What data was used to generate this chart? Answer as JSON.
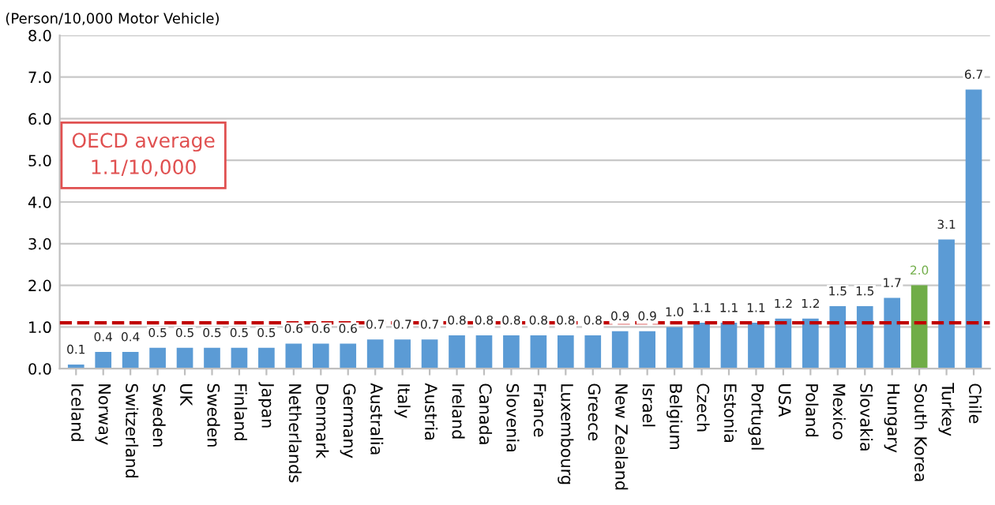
{
  "chart_data": {
    "type": "bar",
    "ylabel": "(Person/10,000 Motor Vehicle)",
    "categories": [
      "Iceland",
      "Norway",
      "Switzerland",
      "Sweden",
      "UK",
      "Sweden",
      "Finland",
      "Japan",
      "Netherlands",
      "Denmark",
      "Germany",
      "Australia",
      "Italy",
      "Austria",
      "Ireland",
      "Canada",
      "Slovenia",
      "France",
      "Luxembourg",
      "Greece",
      "New Zealand",
      "Israel",
      "Belgium",
      "Czech",
      "Estonia",
      "Portugal",
      "USA",
      "Poland",
      "Mexico",
      "Slovakia",
      "Hungary",
      "South Korea",
      "Turkey",
      "Chile"
    ],
    "values": [
      0.1,
      0.4,
      0.4,
      0.5,
      0.5,
      0.5,
      0.5,
      0.5,
      0.6,
      0.6,
      0.6,
      0.7,
      0.7,
      0.7,
      0.8,
      0.8,
      0.8,
      0.8,
      0.8,
      0.8,
      0.9,
      0.9,
      1.0,
      1.1,
      1.1,
      1.1,
      1.2,
      1.2,
      1.5,
      1.5,
      1.7,
      2.0,
      3.1,
      6.7
    ],
    "colors": [
      "#5b9bd5",
      "#5b9bd5",
      "#5b9bd5",
      "#5b9bd5",
      "#5b9bd5",
      "#5b9bd5",
      "#5b9bd5",
      "#5b9bd5",
      "#5b9bd5",
      "#5b9bd5",
      "#5b9bd5",
      "#5b9bd5",
      "#5b9bd5",
      "#5b9bd5",
      "#5b9bd5",
      "#5b9bd5",
      "#5b9bd5",
      "#5b9bd5",
      "#5b9bd5",
      "#5b9bd5",
      "#5b9bd5",
      "#5b9bd5",
      "#5b9bd5",
      "#5b9bd5",
      "#5b9bd5",
      "#5b9bd5",
      "#5b9bd5",
      "#5b9bd5",
      "#5b9bd5",
      "#5b9bd5",
      "#5b9bd5",
      "#70ad47",
      "#5b9bd5",
      "#5b9bd5"
    ],
    "ylim": [
      0,
      8
    ],
    "yticks": [
      {
        "value": 0,
        "label": "0.0"
      },
      {
        "value": 1,
        "label": "1.0"
      },
      {
        "value": 2,
        "label": "2.0"
      },
      {
        "value": 3,
        "label": "3.0"
      },
      {
        "value": 4,
        "label": "4.0"
      },
      {
        "value": 5,
        "label": "5.0"
      },
      {
        "value": 6,
        "label": "6.0"
      },
      {
        "value": 7,
        "label": "7.0"
      },
      {
        "value": 8,
        "label": "8.0"
      }
    ],
    "value_labels": [
      "0.1",
      "0.4",
      "0.4",
      "0.5",
      "0.5",
      "0.5",
      "0.5",
      "0.5",
      "0.6",
      "0.6",
      "0.6",
      "0.7",
      "0.7",
      "0.7",
      "0.8",
      "0.8",
      "0.8",
      "0.8",
      "0.8",
      "0.8",
      "0.9",
      "0.9",
      "1.0",
      "1.1",
      "1.1",
      "1.1",
      "1.2",
      "1.2",
      "1.5",
      "1.5",
      "1.7",
      "2.0",
      "3.1",
      "6.7"
    ],
    "grid": "y",
    "annotations": [
      "OECD average\n1.1/10,000"
    ],
    "ref_lines": [
      {
        "axis": "y",
        "value": 1.1,
        "color": "#c00000",
        "line_style": "dashed"
      }
    ]
  }
}
